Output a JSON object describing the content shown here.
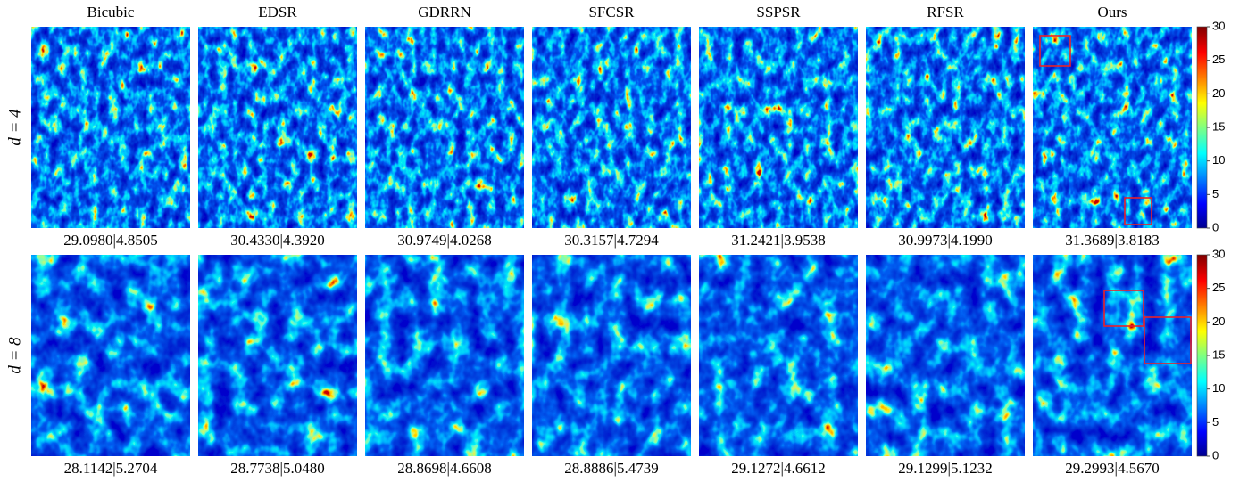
{
  "columns": [
    "Bicubic",
    "EDSR",
    "GDRRN",
    "SFCSR",
    "SSPSR",
    "RFSR",
    "Ours"
  ],
  "rows": [
    {
      "label": "d = 4",
      "scores": [
        "29.0980|4.8505",
        "30.4330|4.3920",
        "30.9749|4.0268",
        "30.3157|4.7294",
        "31.2421|3.9538",
        "30.9973|4.1990",
        "31.3689|3.8183"
      ],
      "colorbar": {
        "range": [
          0,
          30
        ],
        "ticks": [
          0,
          5,
          10,
          15,
          20,
          25,
          30
        ]
      }
    },
    {
      "label": "d = 8",
      "scores": [
        "28.1142|5.2704",
        "28.7738|5.0480",
        "28.8698|4.6608",
        "28.8886|5.4739",
        "29.1272|4.6612",
        "29.1299|5.1232",
        "29.2993|4.5670"
      ],
      "colorbar": {
        "range": [
          0,
          30
        ],
        "ticks": [
          0,
          5,
          10,
          15,
          20,
          25,
          30
        ]
      }
    }
  ]
}
